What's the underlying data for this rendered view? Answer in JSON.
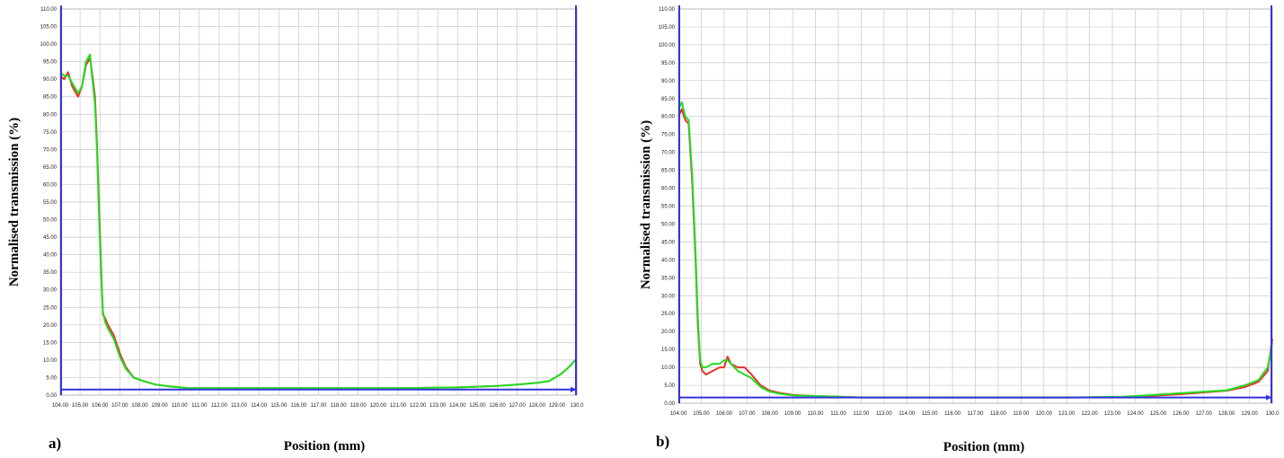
{
  "chart_data": [
    {
      "type": "line",
      "panel_label": "a)",
      "xlabel": "Position (mm)",
      "ylabel": "Normalised transmission (%)",
      "xlim": [
        104,
        130
      ],
      "ylim": [
        0,
        110
      ],
      "x_ticks": [
        "104.00",
        "105.00",
        "106.00",
        "107.00",
        "108.00",
        "109.00",
        "110.00",
        "111.00",
        "112.00",
        "113.00",
        "114.00",
        "115.00",
        "116.00",
        "117.00",
        "118.00",
        "119.00",
        "120.00",
        "121.00",
        "122.00",
        "123.00",
        "124.00",
        "125.00",
        "126.00",
        "127.00",
        "128.00",
        "129.00",
        "130.0"
      ],
      "y_ticks": [
        "0.00",
        "5.00",
        "10.00",
        "15.00",
        "20.00",
        "25.00",
        "30.00",
        "35.00",
        "40.00",
        "45.00",
        "50.00",
        "55.00",
        "60.00",
        "65.00",
        "70.00",
        "75.00",
        "80.00",
        "85.00",
        "90.00",
        "95.00",
        "100.00",
        "105.00",
        "110.00"
      ],
      "grid": true,
      "colors": {
        "series1": "#e8322a",
        "series2": "#22dd22",
        "marker": "#3333dd"
      },
      "baseline_y": 1.6,
      "series": [
        {
          "color": "#e8322a",
          "x": [
            104.0,
            104.2,
            104.4,
            104.6,
            104.9,
            105.1,
            105.3,
            105.5,
            105.6,
            105.75,
            105.85,
            105.95,
            106.05,
            106.15,
            106.25,
            106.4,
            106.7,
            107.0,
            107.3,
            107.7,
            108.2,
            108.8,
            109.5,
            110.5,
            112,
            115,
            118,
            121,
            124,
            126,
            127,
            128,
            128.6,
            129.2,
            129.6,
            130.0
          ],
          "y": [
            91,
            90,
            92,
            88,
            85,
            88,
            94,
            96,
            92,
            85,
            72,
            55,
            38,
            23,
            22,
            20,
            17,
            12,
            8,
            5,
            4,
            3,
            2.5,
            2,
            2,
            2,
            2,
            2,
            2.2,
            2.6,
            3,
            3.5,
            4,
            6,
            8,
            10.5
          ]
        },
        {
          "color": "#22dd22",
          "x": [
            104.0,
            104.2,
            104.4,
            104.6,
            104.9,
            105.1,
            105.3,
            105.5,
            105.6,
            105.75,
            105.85,
            105.95,
            106.05,
            106.15,
            106.25,
            106.4,
            106.7,
            107.0,
            107.3,
            107.7,
            108.2,
            108.8,
            109.5,
            110.5,
            112,
            115,
            118,
            121,
            124,
            126,
            127,
            128,
            128.6,
            129.2,
            129.6,
            130.0
          ],
          "y": [
            92,
            91,
            91,
            89,
            86,
            88,
            95,
            97,
            91,
            83,
            70,
            52,
            36,
            24,
            21,
            19,
            16,
            11,
            7.5,
            5,
            4,
            3,
            2.5,
            2,
            2,
            2,
            2,
            2,
            2.2,
            2.6,
            3,
            3.5,
            4,
            6,
            8,
            10.5
          ]
        }
      ]
    },
    {
      "type": "line",
      "panel_label": "b)",
      "xlabel": "Position (mm)",
      "ylabel": "Normalised transmission (%)",
      "xlim": [
        104,
        130
      ],
      "ylim": [
        0,
        110
      ],
      "x_ticks": [
        "104.00",
        "105.00",
        "106.00",
        "107.00",
        "108.00",
        "109.00",
        "110.00",
        "111.00",
        "112.00",
        "113.00",
        "114.00",
        "115.00",
        "116.00",
        "117.00",
        "118.00",
        "119.00",
        "120.00",
        "121.00",
        "122.00",
        "123.00",
        "124.00",
        "125.00",
        "126.00",
        "127.00",
        "128.00",
        "129.00",
        "130.0"
      ],
      "y_ticks": [
        "0.00",
        "5.00",
        "10.00",
        "15.00",
        "20.00",
        "25.00",
        "30.00",
        "35.00",
        "40.00",
        "45.00",
        "50.00",
        "55.00",
        "60.00",
        "65.00",
        "70.00",
        "75.00",
        "80.00",
        "85.00",
        "90.00",
        "95.00",
        "100.00",
        "105.00",
        "110.00"
      ],
      "grid": true,
      "colors": {
        "series1": "#e8322a",
        "series2": "#22dd22",
        "marker": "#3333dd"
      },
      "baseline_y": 1.6,
      "series": [
        {
          "color": "#e8322a",
          "x": [
            104.0,
            104.15,
            104.3,
            104.45,
            104.6,
            104.75,
            104.85,
            104.95,
            105.05,
            105.2,
            105.5,
            105.8,
            106.0,
            106.15,
            106.3,
            106.6,
            106.9,
            107.2,
            107.6,
            108.0,
            108.5,
            109.0,
            110.0,
            111.0,
            112,
            115,
            118,
            121,
            123.5,
            124.5,
            126,
            127,
            128,
            128.8,
            129.4,
            129.8,
            130.0
          ],
          "y": [
            80,
            82,
            79,
            78,
            62,
            40,
            22,
            11,
            9,
            8,
            9,
            10,
            10,
            13,
            11,
            10,
            10,
            8,
            5,
            3.5,
            2.8,
            2.3,
            2,
            1.8,
            1.6,
            1.6,
            1.6,
            1.6,
            1.7,
            2,
            2.5,
            3,
            3.5,
            4.5,
            6,
            9,
            18
          ]
        },
        {
          "color": "#22dd22",
          "x": [
            104.0,
            104.15,
            104.3,
            104.45,
            104.6,
            104.75,
            104.85,
            104.95,
            105.05,
            105.2,
            105.5,
            105.8,
            106.0,
            106.15,
            106.3,
            106.6,
            106.9,
            107.2,
            107.6,
            108.0,
            108.5,
            109.0,
            110.0,
            111.0,
            112,
            115,
            118,
            121,
            123.5,
            124.5,
            126,
            127,
            128,
            128.8,
            129.4,
            129.8,
            130.0
          ],
          "y": [
            82,
            84,
            80,
            79,
            64,
            42,
            24,
            12,
            10,
            10,
            11,
            11,
            12,
            12,
            11,
            9,
            8,
            7,
            4.5,
            3.2,
            2.6,
            2.2,
            2,
            1.8,
            1.6,
            1.6,
            1.6,
            1.6,
            1.8,
            2.2,
            2.8,
            3.2,
            3.6,
            5,
            6.5,
            10,
            17
          ]
        }
      ]
    }
  ]
}
